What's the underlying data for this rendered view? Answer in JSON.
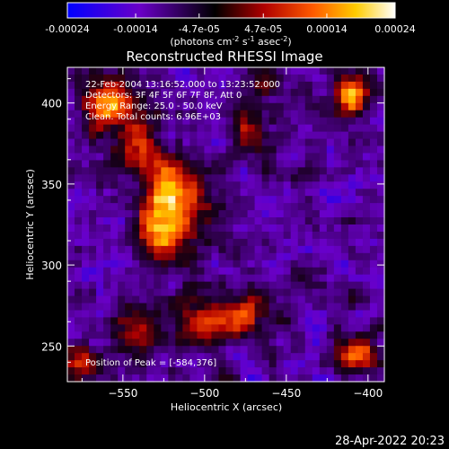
{
  "chart_data": {
    "type": "heatmap",
    "title": "Reconstructed RHESSI Image",
    "colorbar": {
      "range": [
        -0.00024,
        0.00024
      ],
      "tick_values": [
        -0.00024,
        -0.00014,
        -4.7e-05,
        4.7e-05,
        0.00014,
        0.00024
      ],
      "tick_labels": [
        "-0.00024",
        "-0.00014",
        "-4.7e-05",
        "4.7e-05",
        "0.00014",
        "0.00024"
      ],
      "unit_label": "(photons cm",
      "unit_exp1": "-2",
      "unit_mid": " s",
      "unit_exp2": "-1",
      "unit_mid2": " asec",
      "unit_exp3": "-2",
      "unit_end": ")",
      "colors": [
        "#0000ff",
        "#6a00c8",
        "#000000",
        "#b00000",
        "#ff5a00",
        "#ffcc00",
        "#ffffff"
      ]
    },
    "xlabel": "Heliocentric X (arcsec)",
    "ylabel": "Heliocentric Y (arcsec)",
    "xlim": [
      -584,
      -390
    ],
    "ylim": [
      228,
      422
    ],
    "x_ticks": [
      -550,
      -500,
      -450,
      -400
    ],
    "x_tick_labels": [
      "−550",
      "−500",
      "−450",
      "−400"
    ],
    "y_ticks": [
      250,
      300,
      350,
      400
    ],
    "y_tick_labels": [
      "250",
      "300",
      "350",
      "400"
    ],
    "annotations": [
      "22-Feb-2004 13:16:52.000 to 13:23:52.000",
      "Detectors: 3F 4F 5F 6F 7F 8F, Att 0",
      "Energy Range: 25.0 - 50.0 keV",
      "Clean. Total counts: 6.96E+03"
    ],
    "peak_annotation": "Position of Peak = [-584,376]",
    "sources": [
      {
        "x": -520,
        "y": 345,
        "amp": 1.0,
        "sigma": 13
      },
      {
        "x": -525,
        "y": 318,
        "amp": 0.8,
        "sigma": 12
      },
      {
        "x": -558,
        "y": 398,
        "amp": 0.85,
        "sigma": 12
      },
      {
        "x": -540,
        "y": 372,
        "amp": 0.65,
        "sigma": 10
      },
      {
        "x": -410,
        "y": 405,
        "amp": 0.9,
        "sigma": 8
      },
      {
        "x": -405,
        "y": 245,
        "amp": 0.85,
        "sigma": 8
      },
      {
        "x": -475,
        "y": 268,
        "amp": 0.7,
        "sigma": 10
      },
      {
        "x": -500,
        "y": 268,
        "amp": 0.75,
        "sigma": 10
      },
      {
        "x": -540,
        "y": 260,
        "amp": 0.55,
        "sigma": 10
      },
      {
        "x": -575,
        "y": 240,
        "amp": 0.65,
        "sigma": 8
      },
      {
        "x": -470,
        "y": 385,
        "amp": 0.5,
        "sigma": 8
      },
      {
        "x": -465,
        "y": 410,
        "amp": 0.45,
        "sigma": 7
      }
    ]
  },
  "timestamp": "28-Apr-2022 20:23"
}
